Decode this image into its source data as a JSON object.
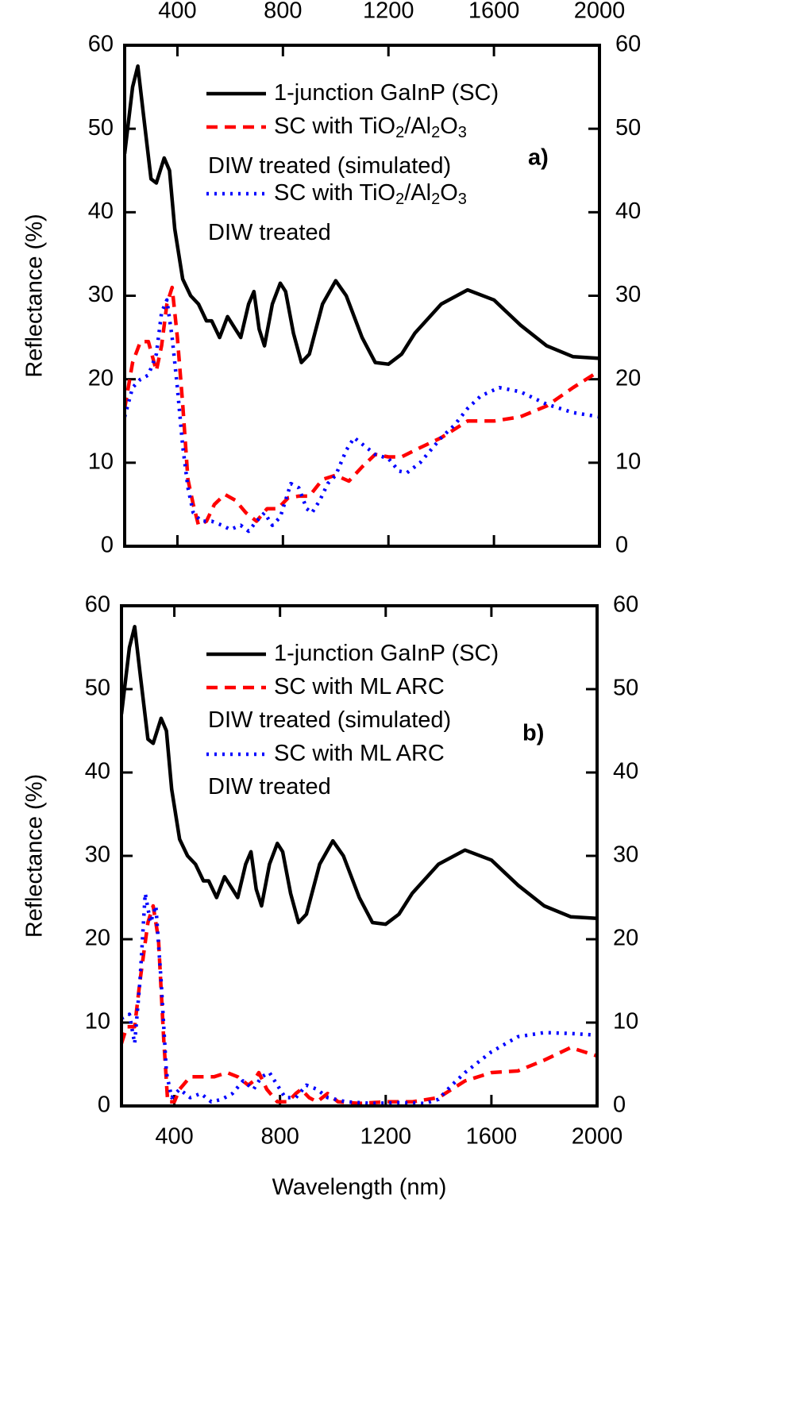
{
  "chart_data": [
    {
      "type": "line",
      "annotation": "a)",
      "ylabel": "Reflectance (%)",
      "xtick_position": "top",
      "xlim": [
        200,
        2000
      ],
      "xticks": [
        400,
        800,
        1200,
        1600,
        2000
      ],
      "ylim": [
        0,
        60
      ],
      "yticks": [
        0,
        10,
        20,
        30,
        40,
        50,
        60
      ],
      "y2lim": [
        0,
        60
      ],
      "y2ticks": [
        0,
        10,
        20,
        30,
        40,
        50,
        60
      ],
      "grid": false,
      "series": [
        {
          "name": "1-junction GaInP (SC)",
          "color": "#000000",
          "style": "solid",
          "x": [
            200,
            230,
            250,
            270,
            300,
            320,
            350,
            370,
            390,
            420,
            450,
            480,
            510,
            530,
            560,
            590,
            620,
            640,
            670,
            690,
            710,
            730,
            760,
            790,
            810,
            840,
            870,
            900,
            950,
            1000,
            1040,
            1100,
            1150,
            1200,
            1250,
            1300,
            1400,
            1500,
            1600,
            1700,
            1800,
            1900,
            2000
          ],
          "values": [
            47,
            55,
            57.5,
            52,
            44,
            43.5,
            46.5,
            45,
            38,
            32,
            30,
            29,
            27,
            27,
            25,
            27.5,
            26,
            25,
            29,
            30.5,
            26,
            24,
            29,
            31.5,
            30.5,
            25.5,
            22,
            23,
            29,
            31.8,
            30,
            25,
            22,
            21.8,
            23,
            25.5,
            29,
            30.7,
            29.5,
            26.5,
            24,
            22.7,
            22.5
          ]
        },
        {
          "name": "SC with TiO2/Al2O3\nDIW treated (simulated)",
          "color": "#ff0000",
          "style": "dashed",
          "x": [
            200,
            230,
            260,
            290,
            320,
            340,
            360,
            380,
            400,
            420,
            440,
            460,
            480,
            510,
            540,
            580,
            620,
            660,
            700,
            740,
            780,
            820,
            860,
            900,
            950,
            1000,
            1050,
            1100,
            1150,
            1200,
            1250,
            1300,
            1400,
            1500,
            1600,
            1700,
            1800,
            1900,
            2000
          ],
          "values": [
            16.5,
            22,
            24.5,
            24.5,
            21,
            24,
            29,
            31,
            25,
            17,
            8,
            5,
            2.5,
            3,
            5,
            6.2,
            5.5,
            4,
            3,
            4.5,
            4.5,
            5.8,
            6,
            6,
            8,
            8.5,
            7.8,
            9.5,
            11,
            10.7,
            10.7,
            11.5,
            13,
            15,
            15,
            15.5,
            16.8,
            19,
            21
          ]
        },
        {
          "name": "SC with TiO2/Al2O3\nDIW treated",
          "color": "#0000ff",
          "style": "dotted",
          "x": [
            200,
            230,
            260,
            290,
            320,
            340,
            360,
            380,
            400,
            420,
            440,
            460,
            490,
            530,
            570,
            600,
            640,
            670,
            700,
            730,
            760,
            790,
            830,
            860,
            890,
            910,
            940,
            970,
            1000,
            1040,
            1070,
            1110,
            1150,
            1200,
            1240,
            1270,
            1320,
            1400,
            1450,
            1500,
            1550,
            1620,
            1700,
            1800,
            1900,
            2000
          ],
          "values": [
            15.5,
            19,
            20,
            20.5,
            23,
            28,
            29.5,
            25,
            19,
            12,
            7,
            4,
            3,
            3,
            2.5,
            2,
            2.5,
            1.8,
            3,
            4,
            2.5,
            3.5,
            7.5,
            7,
            4.5,
            4,
            5.5,
            7.5,
            8.5,
            11.5,
            13,
            12,
            11,
            10.5,
            9,
            8.8,
            10,
            13,
            14.5,
            16.5,
            18,
            19,
            18.5,
            17,
            16,
            15.5
          ]
        }
      ]
    },
    {
      "type": "line",
      "annotation": "b)",
      "ylabel": "Reflectance (%)",
      "xlabel": "Wavelength (nm)",
      "xtick_position": "bottom",
      "xlim": [
        200,
        2000
      ],
      "xticks": [
        400,
        800,
        1200,
        1600,
        2000
      ],
      "ylim": [
        0,
        60
      ],
      "yticks": [
        0,
        10,
        20,
        30,
        40,
        50,
        60
      ],
      "y2lim": [
        0,
        60
      ],
      "y2ticks": [
        0,
        10,
        20,
        30,
        40,
        50,
        60
      ],
      "grid": false,
      "series": [
        {
          "name": "1-junction GaInP (SC)",
          "color": "#000000",
          "style": "solid",
          "x": [
            200,
            230,
            250,
            270,
            300,
            320,
            350,
            370,
            390,
            420,
            450,
            480,
            510,
            530,
            560,
            590,
            620,
            640,
            670,
            690,
            710,
            730,
            760,
            790,
            810,
            840,
            870,
            900,
            950,
            1000,
            1040,
            1100,
            1150,
            1200,
            1250,
            1300,
            1400,
            1500,
            1600,
            1700,
            1800,
            1900,
            2000
          ],
          "values": [
            47,
            55,
            57.5,
            52,
            44,
            43.5,
            46.5,
            45,
            38,
            32,
            30,
            29,
            27,
            27,
            25,
            27.5,
            26,
            25,
            29,
            30.5,
            26,
            24,
            29,
            31.5,
            30.5,
            25.5,
            22,
            23,
            29,
            31.8,
            30,
            25,
            22,
            21.8,
            23,
            25.5,
            29,
            30.7,
            29.5,
            26.5,
            24,
            22.7,
            22.5
          ]
        },
        {
          "name": "SC with ML ARC\nDIW treated (simulated)",
          "color": "#ff0000",
          "style": "dashed",
          "x": [
            200,
            220,
            250,
            270,
            300,
            320,
            340,
            360,
            375,
            400,
            420,
            460,
            500,
            550,
            600,
            640,
            680,
            700,
            720,
            750,
            790,
            830,
            860,
            880,
            910,
            940,
            980,
            1020,
            1100,
            1200,
            1300,
            1400,
            1450,
            1500,
            1600,
            1700,
            1800,
            1900,
            2000
          ],
          "values": [
            7.5,
            9.5,
            9.5,
            15,
            22,
            24,
            20,
            8,
            0.5,
            0.5,
            2,
            3.5,
            3.5,
            3.5,
            4,
            3.5,
            2.5,
            3,
            4,
            2,
            0.5,
            0.5,
            1.5,
            2,
            1,
            0.5,
            1.5,
            0.5,
            0.3,
            0.5,
            0.5,
            1,
            2,
            3,
            4,
            4.2,
            5.5,
            7,
            6
          ]
        },
        {
          "name": "SC with ML ARC\nDIW treated",
          "color": "#0000ff",
          "style": "dotted",
          "x": [
            200,
            230,
            250,
            270,
            290,
            310,
            330,
            350,
            370,
            390,
            420,
            460,
            500,
            540,
            580,
            620,
            660,
            700,
            730,
            760,
            790,
            820,
            860,
            900,
            940,
            980,
            1050,
            1150,
            1250,
            1350,
            1400,
            1450,
            1500,
            1600,
            1700,
            1800,
            1900,
            2000
          ],
          "values": [
            10.5,
            11,
            7.5,
            15,
            25.5,
            22,
            24,
            15,
            4,
            1,
            2,
            1,
            1.5,
            0.5,
            0.8,
            1.5,
            3,
            2,
            3.5,
            4,
            2.5,
            1,
            1,
            2.5,
            2,
            1,
            0.5,
            0.3,
            0.4,
            0.3,
            0.8,
            2.5,
            4,
            6.5,
            8.3,
            8.8,
            8.7,
            8.5
          ]
        }
      ]
    }
  ]
}
